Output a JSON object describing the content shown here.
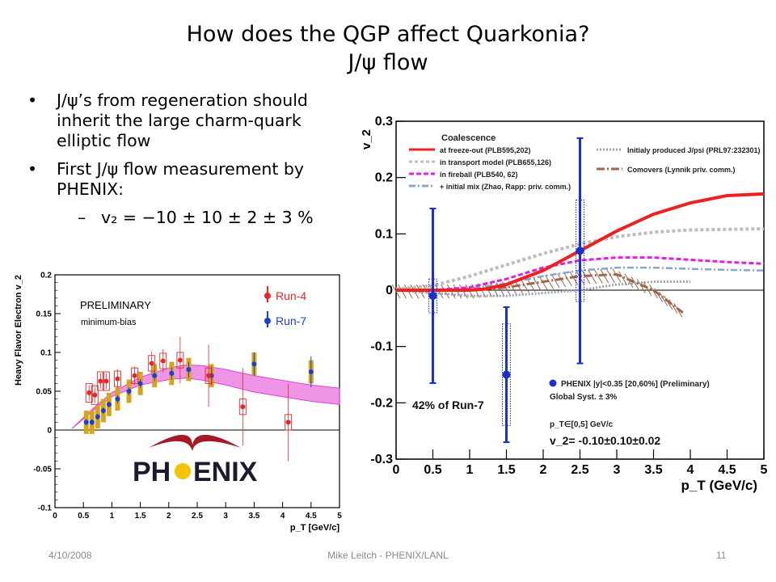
{
  "slide": {
    "title_line1": "How does the QGP affect Quarkonia?",
    "title_line2": "J/ψ flow",
    "bullets": [
      "J/ψ’s from regeneration should inherit the large charm-quark elliptic flow",
      "First J/ψ flow measurement by PHENIX:"
    ],
    "sub_bullet": "v₂ = −10 ± 10 ± 2 ± 3 %",
    "footer_date": "4/10/2008",
    "footer_center": "Mike Leitch - PHENIX/LANL",
    "footer_page": "11"
  },
  "chart_data": [
    {
      "type": "scatter",
      "title": "",
      "xlabel": "p_T [GeV/c]",
      "ylabel": "Heavy Flavor Electron v_2",
      "xlim": [
        0,
        5
      ],
      "ylim": [
        -0.1,
        0.2
      ],
      "xticks": [
        "0",
        "0.5",
        "1",
        "1.5",
        "2",
        "2.5",
        "3",
        "3.5",
        "4",
        "4.5",
        "5"
      ],
      "yticks": [
        "-0.1",
        "-0.05",
        "0",
        "0.05",
        "0.1",
        "0.15",
        "0.2"
      ],
      "annotations": [
        "PRELIMINARY",
        "minimum-bias",
        "PH",
        "ENIX"
      ],
      "legend": [
        {
          "name": "Run-4",
          "color": "#e8262a"
        },
        {
          "name": "Run-7",
          "color": "#1c3fd0"
        }
      ],
      "series": [
        {
          "name": "Run-4",
          "color": "#e8262a",
          "points": [
            {
              "x": 0.6,
              "y": 0.048,
              "err": 0.01,
              "sys": 0.012
            },
            {
              "x": 0.7,
              "y": 0.045,
              "err": 0.01,
              "sys": 0.012
            },
            {
              "x": 0.8,
              "y": 0.063,
              "err": 0.01,
              "sys": 0.012
            },
            {
              "x": 0.9,
              "y": 0.063,
              "err": 0.01,
              "sys": 0.012
            },
            {
              "x": 1.1,
              "y": 0.066,
              "err": 0.012,
              "sys": 0.01
            },
            {
              "x": 1.4,
              "y": 0.07,
              "err": 0.012,
              "sys": 0.01
            },
            {
              "x": 1.7,
              "y": 0.086,
              "err": 0.015,
              "sys": 0.01
            },
            {
              "x": 1.9,
              "y": 0.089,
              "err": 0.015,
              "sys": 0.01
            },
            {
              "x": 2.2,
              "y": 0.09,
              "err": 0.03,
              "sys": 0.01
            },
            {
              "x": 2.7,
              "y": 0.07,
              "err": 0.04,
              "sys": 0.01
            },
            {
              "x": 3.3,
              "y": 0.03,
              "err": 0.05,
              "sys": 0.01
            },
            {
              "x": 4.1,
              "y": 0.01,
              "err": 0.05,
              "sys": 0.01
            }
          ]
        },
        {
          "name": "Run-7",
          "color": "#1c3fd0",
          "points": [
            {
              "x": 0.55,
              "y": 0.01,
              "err": 0.004,
              "sys": 0.015
            },
            {
              "x": 0.65,
              "y": 0.01,
              "err": 0.004,
              "sys": 0.015
            },
            {
              "x": 0.75,
              "y": 0.017,
              "err": 0.004,
              "sys": 0.015
            },
            {
              "x": 0.85,
              "y": 0.025,
              "err": 0.004,
              "sys": 0.015
            },
            {
              "x": 0.95,
              "y": 0.033,
              "err": 0.004,
              "sys": 0.015
            },
            {
              "x": 1.1,
              "y": 0.04,
              "err": 0.005,
              "sys": 0.015
            },
            {
              "x": 1.3,
              "y": 0.05,
              "err": 0.005,
              "sys": 0.015
            },
            {
              "x": 1.5,
              "y": 0.06,
              "err": 0.006,
              "sys": 0.015
            },
            {
              "x": 1.75,
              "y": 0.07,
              "err": 0.007,
              "sys": 0.015
            },
            {
              "x": 2.05,
              "y": 0.073,
              "err": 0.008,
              "sys": 0.015
            },
            {
              "x": 2.35,
              "y": 0.078,
              "err": 0.01,
              "sys": 0.015
            },
            {
              "x": 2.75,
              "y": 0.07,
              "err": 0.012,
              "sys": 0.015
            },
            {
              "x": 3.5,
              "y": 0.085,
              "err": 0.015,
              "sys": 0.015
            },
            {
              "x": 4.5,
              "y": 0.075,
              "err": 0.02,
              "sys": 0.015
            }
          ]
        }
      ],
      "model_band": {
        "color": "#e040d0",
        "x": [
          0.3,
          0.7,
          1.0,
          1.5,
          2.0,
          2.3,
          2.6,
          3.0,
          3.5,
          4.0,
          4.5,
          5.0
        ],
        "upper": [
          0.002,
          0.03,
          0.048,
          0.068,
          0.08,
          0.084,
          0.083,
          0.078,
          0.07,
          0.064,
          0.058,
          0.054
        ],
        "lower": [
          0.002,
          0.027,
          0.043,
          0.058,
          0.065,
          0.067,
          0.064,
          0.058,
          0.049,
          0.043,
          0.037,
          0.033
        ]
      }
    },
    {
      "type": "scatter",
      "title": "",
      "xlabel": "p_T (GeV/c)",
      "ylabel": "v_2",
      "xlim": [
        0,
        5
      ],
      "ylim": [
        -0.3,
        0.3
      ],
      "xticks": [
        "0",
        "0.5",
        "1",
        "1.5",
        "2",
        "2.5",
        "3",
        "3.5",
        "4",
        "4.5",
        "5"
      ],
      "yticks": [
        "-0.3",
        "-0.2",
        "-0.1",
        "0",
        "0.1",
        "0.2",
        "0.3"
      ],
      "legend_title": "Coalescence",
      "legend": [
        {
          "name": "at freeze-out (PLB595,202)",
          "color": "#ee2020"
        },
        {
          "name": "in transport model (PLB655,126)",
          "color": "#bdbdbd"
        },
        {
          "name": "in fireball (PLB540, 62)",
          "color": "#e020e0"
        },
        {
          "name": "+ initial mix (Zhao, Rapp: priv. comm.)",
          "color": "#8aa4c8"
        },
        {
          "name": "Initialy produced J/psi (PRL97:232301)",
          "color": "#9aa0b0"
        },
        {
          "name": "Comovers (Lynnik priv. comm.)",
          "color": "#a0654a"
        }
      ],
      "annotations": [
        "PHENIX |y|<0.35 [20,60%] (Preliminary)",
        "Global Syst. ± 3%",
        "p_T∈[0,5] GeV/c",
        "v_2= -0.10±0.10±0.02",
        "42% of Run-7"
      ],
      "series": [
        {
          "name": "PHENIX",
          "color": "#1a2fd0",
          "points": [
            {
              "x": 0.5,
              "y": -0.01,
              "err": 0.155,
              "sys": 0.03
            },
            {
              "x": 1.5,
              "y": -0.15,
              "err": 0.12,
              "sys": 0.09
            },
            {
              "x": 2.5,
              "y": 0.07,
              "err": 0.2,
              "sys": 0.09
            }
          ]
        },
        {
          "name": "at freeze-out (PLB595,202)",
          "color": "#ee2020",
          "x": [
            0,
            0.5,
            1.0,
            1.2,
            1.5,
            2.0,
            2.5,
            3.0,
            3.5,
            4.0,
            4.5,
            5.0
          ],
          "y": [
            0,
            0,
            0,
            0.002,
            0.01,
            0.035,
            0.07,
            0.105,
            0.135,
            0.155,
            0.168,
            0.171
          ]
        },
        {
          "name": "in transport model (PLB655,126)",
          "color": "#bdbdbd",
          "x": [
            0,
            0.5,
            1.0,
            1.5,
            2.0,
            2.5,
            3.0,
            3.5,
            4.0,
            4.5,
            5.0
          ],
          "y": [
            0.002,
            0.008,
            0.025,
            0.045,
            0.065,
            0.082,
            0.095,
            0.103,
            0.107,
            0.108,
            0.109
          ]
        },
        {
          "name": "in fireball (PLB540, 62)",
          "color": "#e020e0",
          "x": [
            0,
            0.5,
            1.0,
            1.5,
            2.0,
            2.5,
            3.0,
            3.5,
            4.0,
            4.5,
            5.0
          ],
          "y": [
            0,
            0,
            0.005,
            0.02,
            0.04,
            0.053,
            0.058,
            0.058,
            0.054,
            0.05,
            0.047
          ]
        },
        {
          "name": "+ initial mix (Zhao, Rapp: priv. comm.)",
          "color": "#8aa4c8",
          "x": [
            0,
            0.5,
            1.0,
            1.5,
            2.0,
            2.5,
            3.0,
            3.5,
            4.0,
            4.5,
            5.0
          ],
          "y": [
            0,
            0,
            0.003,
            0.012,
            0.025,
            0.035,
            0.04,
            0.04,
            0.038,
            0.036,
            0.035
          ]
        },
        {
          "name": "Initialy produced J/psi (PRL97:232301)",
          "color": "#9aa0b0",
          "x": [
            0,
            0.5,
            1.0,
            1.5,
            2.0,
            2.5,
            3.0,
            3.5,
            4.0
          ],
          "y": [
            0,
            -0.005,
            -0.01,
            -0.01,
            -0.005,
            0.0,
            0.01,
            0.015,
            0.015
          ]
        },
        {
          "name": "Comovers (Lynnik priv. comm.)",
          "color": "#a0654a",
          "x": [
            0,
            0.5,
            1.0,
            1.5,
            2.0,
            2.5,
            3.0,
            3.5,
            3.9
          ],
          "y": [
            0,
            0.0,
            0.0,
            0.005,
            0.015,
            0.025,
            0.028,
            0.0,
            -0.04
          ]
        }
      ]
    }
  ]
}
